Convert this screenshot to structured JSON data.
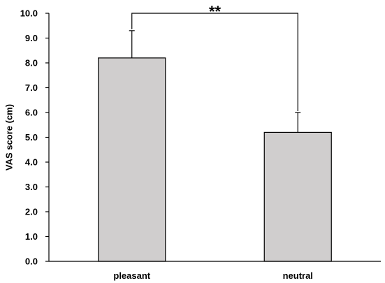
{
  "chart_data": {
    "type": "bar",
    "categories": [
      "pleasant",
      "neutral"
    ],
    "values": [
      8.2,
      5.2
    ],
    "error_upper": [
      9.3,
      6.0
    ],
    "ylabel": "VAS score (cm)",
    "xlabel": "",
    "ylim": [
      0.0,
      10.0
    ],
    "yticks": [
      "0.0",
      "1.0",
      "2.0",
      "3.0",
      "4.0",
      "5.0",
      "6.0",
      "7.0",
      "8.0",
      "9.0",
      "10.0"
    ],
    "significance": {
      "between": [
        "pleasant",
        "neutral"
      ],
      "label": "**"
    },
    "grid": false,
    "legend": "none",
    "bar_color": "#d0cece",
    "edge_color": "#000000"
  }
}
